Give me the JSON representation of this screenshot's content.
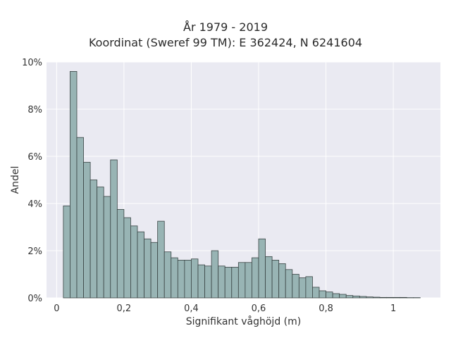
{
  "chart_data": {
    "type": "bar",
    "title": "År 1979 - 2019",
    "subtitle": "Koordinat (Sweref 99 TM): E 362424, N 6241604",
    "xlabel": "Signifikant våghöjd (m)",
    "ylabel": "Andel",
    "xlim": [
      -0.03,
      1.14
    ],
    "ylim": [
      0,
      10
    ],
    "grid": true,
    "x_ticks": [
      {
        "value": 0,
        "label": "0"
      },
      {
        "value": 0.2,
        "label": "0,2"
      },
      {
        "value": 0.4,
        "label": "0,4"
      },
      {
        "value": 0.6,
        "label": "0,6"
      },
      {
        "value": 0.8,
        "label": "0,8"
      },
      {
        "value": 1.0,
        "label": "1"
      }
    ],
    "y_ticks": [
      {
        "value": 0,
        "label": "0%"
      },
      {
        "value": 2,
        "label": "2%"
      },
      {
        "value": 4,
        "label": "4%"
      },
      {
        "value": 6,
        "label": "6%"
      },
      {
        "value": 8,
        "label": "8%"
      },
      {
        "value": 10,
        "label": "10%"
      }
    ],
    "bin_start": 0.02,
    "bin_width": 0.02,
    "values": [
      3.9,
      9.6,
      6.8,
      5.75,
      5.0,
      4.7,
      4.3,
      5.85,
      3.75,
      3.4,
      3.05,
      2.8,
      2.5,
      2.35,
      3.25,
      1.95,
      1.7,
      1.6,
      1.6,
      1.65,
      1.4,
      1.35,
      2.0,
      1.35,
      1.3,
      1.3,
      1.5,
      1.5,
      1.7,
      2.5,
      1.75,
      1.6,
      1.45,
      1.2,
      1.0,
      0.85,
      0.9,
      0.45,
      0.3,
      0.25,
      0.18,
      0.15,
      0.1,
      0.08,
      0.06,
      0.04,
      0.03,
      0.02,
      0.02,
      0.02,
      0.02,
      0.01,
      0.01
    ],
    "colors": {
      "bar_fill": "#98b4b4",
      "bar_edge": "#3a4444",
      "plot_bg": "#eaeaf2",
      "grid": "#ffffff"
    }
  }
}
